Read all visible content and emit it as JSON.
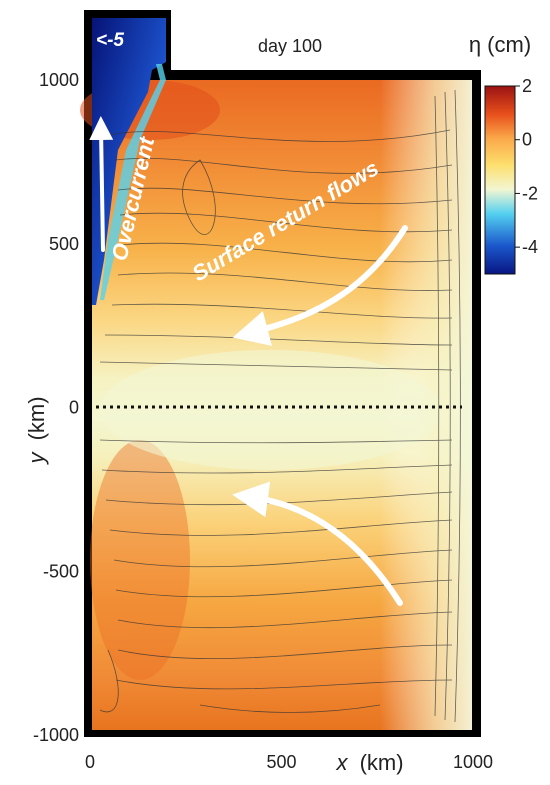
{
  "chart_data": {
    "type": "heatmap",
    "title": "day 100",
    "xlabel": {
      "var": "x",
      "unit": "(km)"
    },
    "ylabel": {
      "var": "y",
      "unit": "(km)"
    },
    "xlim": [
      0,
      1000
    ],
    "ylim": [
      -1000,
      1200
    ],
    "x_ticks": [
      "0",
      "500",
      "1000"
    ],
    "y_ticks": [
      "-1000",
      "-500",
      "0",
      "500",
      "1000"
    ],
    "colorbar": {
      "label": "η (cm)",
      "min": -5,
      "max": 2,
      "ticks": [
        "2",
        "0",
        "-2",
        "-4"
      ],
      "colors": {
        "top": "#9b1212",
        "upper": "#e8501c",
        "mid_high": "#fba94a",
        "zero": "#fddf6e",
        "mid_low": "#f3f6d2",
        "cyan": "#54d0f0",
        "blue": "#1b57cc",
        "bottom": "#081682"
      }
    },
    "annotations": {
      "clip_label": "<-5",
      "overcurrent": "Overcurrent",
      "surface_return": "Surface return flows"
    },
    "reference_line": {
      "y": 0,
      "style": "dotted"
    }
  }
}
